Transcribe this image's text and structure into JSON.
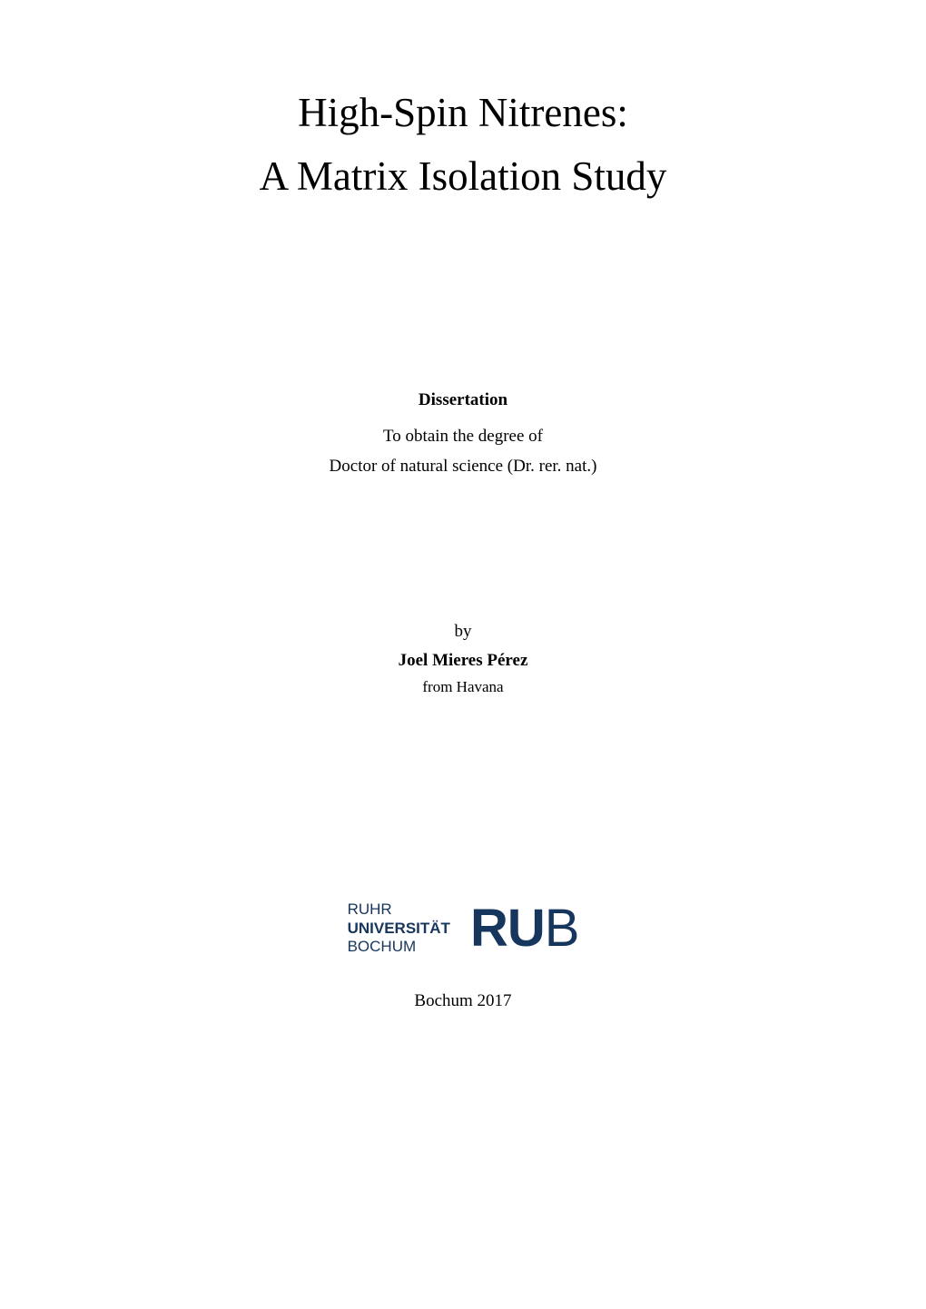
{
  "title": {
    "line1": "High-Spin Nitrenes:",
    "line2": "A Matrix Isolation Study",
    "fontsize": 45,
    "color": "#000000"
  },
  "dissertation": {
    "heading": "Dissertation",
    "line1": "To obtain the degree of",
    "line2": "Doctor of natural science (Dr. rer. nat.)",
    "heading_fontsize": 19,
    "line_fontsize": 19
  },
  "author": {
    "by_label": "by",
    "name": "Joel Mieres Pérez",
    "origin": "from Havana",
    "by_fontsize": 19,
    "name_fontsize": 19,
    "origin_fontsize": 17
  },
  "logo": {
    "text_line1": "RUHR",
    "text_line2": "UNIVERSITÄT",
    "text_line3": "BOCHUM",
    "abbrev_r": "R",
    "abbrev_u": "U",
    "abbrev_b": "B",
    "text_color": "#17365d",
    "text_fontsize": 17,
    "abbrev_fontsize": 58
  },
  "footer": {
    "text": "Bochum 2017",
    "fontsize": 19
  },
  "page_background": "#ffffff"
}
